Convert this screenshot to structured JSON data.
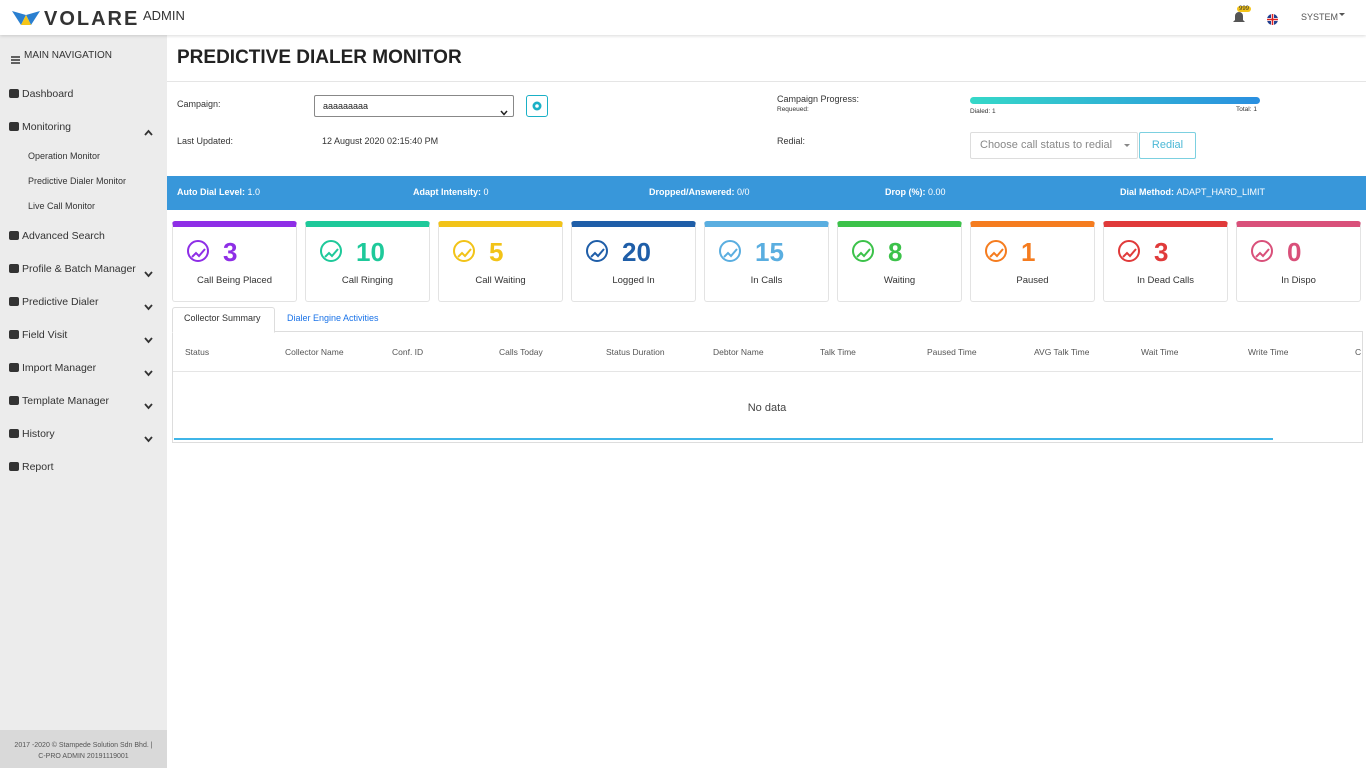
{
  "header": {
    "brand": "VOLARE",
    "brand_suffix": "ADMIN",
    "notification_count": "999",
    "user": "SYSTEM"
  },
  "sidebar": {
    "title": "MAIN NAVIGATION",
    "items": [
      {
        "label": "Dashboard"
      },
      {
        "label": "Monitoring",
        "expandable": true,
        "expanded": true,
        "children": [
          "Operation Monitor",
          "Predictive Dialer Monitor",
          "Live Call Monitor"
        ]
      },
      {
        "label": "Advanced Search"
      },
      {
        "label": "Profile & Batch Manager",
        "expandable": true
      },
      {
        "label": "Predictive Dialer",
        "expandable": true
      },
      {
        "label": "Field Visit",
        "expandable": true
      },
      {
        "label": "Import Manager",
        "expandable": true
      },
      {
        "label": "Template Manager",
        "expandable": true
      },
      {
        "label": "History",
        "expandable": true
      },
      {
        "label": "Report"
      }
    ],
    "footer": "2017 -2020 © Stampede Solution Sdn Bhd. | C-PRO ADMIN 20191119001"
  },
  "page": {
    "title": "PREDICTIVE DIALER MONITOR"
  },
  "form": {
    "campaign_label": "Campaign:",
    "campaign_value": "aaaaaaaaa",
    "last_updated_label": "Last Updated:",
    "last_updated_value": "12 August 2020 02:15:40 PM",
    "progress_label": "Campaign Progress:",
    "requeued_label": "Requeued:",
    "dialed": "Dialed: 1",
    "total": "Total: 1",
    "redial_label": "Redial:",
    "redial_placeholder": "Choose call status to redial",
    "redial_button": "Redial"
  },
  "stats_bar": [
    {
      "label": "Auto Dial Level:",
      "value": "1.0"
    },
    {
      "label": "Adapt Intensity:",
      "value": "0"
    },
    {
      "label": "Dropped/Answered:",
      "value": "0/0"
    },
    {
      "label": "Drop (%):",
      "value": "0.00"
    },
    {
      "label": "Dial Method:",
      "value": "ADAPT_HARD_LIMIT"
    }
  ],
  "cards": [
    {
      "value": 3,
      "label": "Call Being Placed",
      "color": "#8e2ee6"
    },
    {
      "value": 10,
      "label": "Call Ringing",
      "color": "#1ec99a"
    },
    {
      "value": 5,
      "label": "Call Waiting",
      "color": "#f2c318"
    },
    {
      "value": 20,
      "label": "Logged In",
      "color": "#1f5ea8"
    },
    {
      "value": 15,
      "label": "In Calls",
      "color": "#5aaee0"
    },
    {
      "value": 8,
      "label": "Waiting",
      "color": "#3cc24a"
    },
    {
      "value": 1,
      "label": "Paused",
      "color": "#f57c1f"
    },
    {
      "value": 3,
      "label": "In Dead Calls",
      "color": "#e03a3a"
    },
    {
      "value": 0,
      "label": "In Dispo",
      "color": "#d9507a"
    }
  ],
  "tabs": [
    "Collector Summary",
    "Dialer Engine Activities"
  ],
  "table": {
    "columns": [
      "Status",
      "Collector Name",
      "Conf. ID",
      "Calls Today",
      "Status Duration",
      "Debtor Name",
      "Talk Time",
      "Paused Time",
      "AVG Talk Time",
      "Wait Time",
      "Write Time",
      "Ca"
    ],
    "empty": "No data"
  }
}
